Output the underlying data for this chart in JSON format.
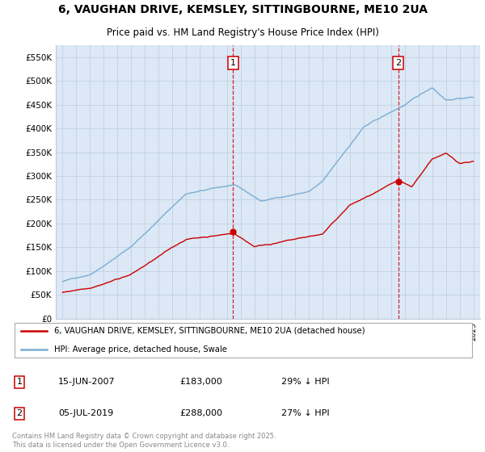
{
  "title": "6, VAUGHAN DRIVE, KEMSLEY, SITTINGBOURNE, ME10 2UA",
  "subtitle": "Price paid vs. HM Land Registry's House Price Index (HPI)",
  "legend_line1": "6, VAUGHAN DRIVE, KEMSLEY, SITTINGBOURNE, ME10 2UA (detached house)",
  "legend_line2": "HPI: Average price, detached house, Swale",
  "footnote": "Contains HM Land Registry data © Crown copyright and database right 2025.\nThis data is licensed under the Open Government Licence v3.0.",
  "sales": [
    {
      "label": "1",
      "date_str": "15-JUN-2007",
      "price": 183000,
      "hpi_note": "29% ↓ HPI",
      "x_year": 2007.46
    },
    {
      "label": "2",
      "date_str": "05-JUL-2019",
      "price": 288000,
      "hpi_note": "27% ↓ HPI",
      "x_year": 2019.51
    }
  ],
  "ylim": [
    0,
    575000
  ],
  "yticks": [
    0,
    50000,
    100000,
    150000,
    200000,
    250000,
    300000,
    350000,
    400000,
    450000,
    500000,
    550000
  ],
  "ytick_labels": [
    "£0",
    "£50K",
    "£100K",
    "£150K",
    "£200K",
    "£250K",
    "£300K",
    "£350K",
    "£400K",
    "£450K",
    "£500K",
    "£550K"
  ],
  "xlim_start": 1994.5,
  "xlim_end": 2025.5,
  "hpi_color": "#7aadd4",
  "price_color": "#cc0000",
  "vline_color": "#cc0000",
  "bg_color": "#dce8f5",
  "plot_bg": "#ffffff",
  "grid_color": "#bbccdd"
}
